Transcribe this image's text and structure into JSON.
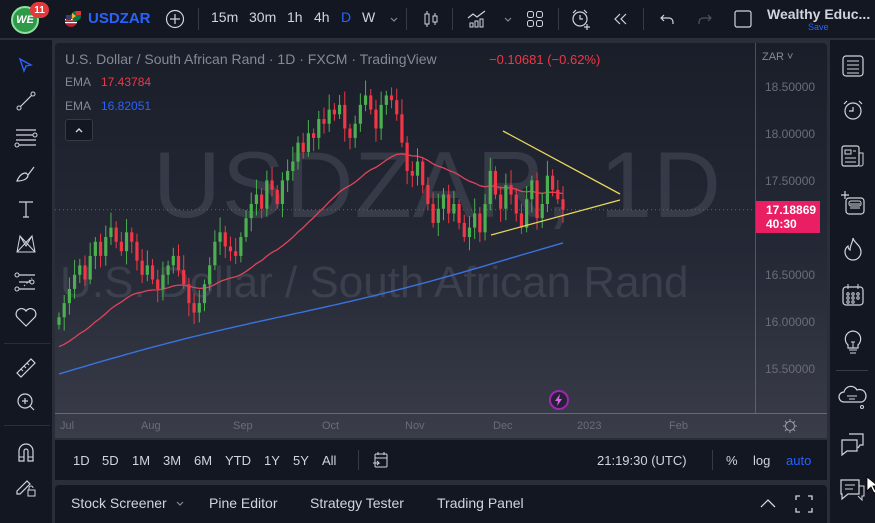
{
  "topbar": {
    "notifications": "11",
    "logo_text": "WE",
    "symbol": "USDZAR",
    "intervals": [
      "15m",
      "30m",
      "1h",
      "4h",
      "D",
      "W"
    ],
    "active_interval": "D",
    "account_name": "Wealthy Educ...",
    "save_label": "Save",
    "icons": [
      "add-symbol-icon",
      "interval-dropdown-icon",
      "candle-style-icon",
      "indicators-icon",
      "indicators-dropdown-icon",
      "layout-icon",
      "alert-icon",
      "replay-icon",
      "undo-icon",
      "redo-icon",
      "fullscreen-square-icon"
    ]
  },
  "legend": {
    "title": "U.S. Dollar / South African Rand · 1D · FXCM · TradingView",
    "change": "−0.10681 (−0.62%)",
    "ema": [
      {
        "label": "EMA",
        "value": "17.43784",
        "color": "#f23645"
      },
      {
        "label": "EMA",
        "value": "16.82051",
        "color": "#2962ff"
      }
    ]
  },
  "watermark": {
    "symbol": "USDZAR, 1D",
    "description": "U.S. Dollar / South African Rand"
  },
  "price_axis": {
    "currency": "ZAR",
    "labels": [
      "18.50000",
      "18.00000",
      "17.50000",
      "17.00000",
      "16.50000",
      "16.00000",
      "15.50000"
    ],
    "current_price": "17.18869",
    "countdown": "40:30",
    "current_color": "#e91e63"
  },
  "time_axis": {
    "labels": [
      "Jul",
      "Aug",
      "Sep",
      "Oct",
      "Nov",
      "Dec",
      "2023",
      "Feb"
    ]
  },
  "range_bar": {
    "ranges": [
      "1D",
      "5D",
      "1M",
      "3M",
      "6M",
      "YTD",
      "1Y",
      "5Y",
      "All"
    ],
    "clock": "21:19:30 (UTC)",
    "percent_label": "%",
    "log_label": "log",
    "auto_label": "auto"
  },
  "bottom_tabs": [
    "Stock Screener",
    "Pine Editor",
    "Strategy Tester",
    "Trading Panel"
  ],
  "colors": {
    "up": "#4caf50",
    "down": "#f23645",
    "ema_fast": "#e0445a",
    "ema_slow": "#3a72e0",
    "triangle": "#e8d85a",
    "accent": "#2962ff"
  },
  "chart_data": {
    "type": "candlestick",
    "title": "U.S. Dollar / South African Rand · 1D · FXCM",
    "ylim": [
      15.3,
      18.8
    ],
    "y_ticks": [
      18.5,
      18.0,
      17.5,
      17.0,
      16.5,
      16.0,
      15.5
    ],
    "x_ticks": [
      "Jul",
      "Aug",
      "Sep",
      "Oct",
      "Nov",
      "Dec",
      "2023",
      "Feb"
    ],
    "close_series": [
      16.05,
      16.2,
      16.35,
      16.5,
      16.6,
      16.45,
      16.7,
      16.85,
      16.7,
      16.9,
      17.0,
      16.85,
      16.75,
      16.95,
      16.85,
      16.65,
      16.5,
      16.6,
      16.45,
      16.35,
      16.5,
      16.6,
      16.7,
      16.55,
      16.4,
      16.2,
      16.1,
      16.2,
      16.4,
      16.6,
      16.85,
      16.95,
      16.8,
      16.75,
      16.7,
      16.9,
      17.1,
      17.25,
      17.35,
      17.2,
      17.5,
      17.4,
      17.25,
      17.5,
      17.6,
      17.7,
      17.9,
      17.8,
      18.0,
      17.95,
      18.15,
      18.1,
      18.25,
      18.2,
      18.3,
      18.05,
      17.95,
      18.1,
      18.3,
      18.4,
      18.25,
      18.05,
      18.3,
      18.4,
      18.35,
      18.2,
      17.9,
      17.6,
      17.55,
      17.7,
      17.45,
      17.25,
      17.05,
      17.2,
      17.35,
      17.15,
      17.25,
      17.05,
      16.9,
      17.0,
      17.15,
      16.95,
      17.25,
      17.6,
      17.35,
      17.2,
      17.45,
      17.35,
      17.15,
      17.0,
      17.3,
      17.5,
      17.1,
      17.25,
      17.55,
      17.4,
      17.3,
      17.19
    ],
    "series": [
      {
        "name": "EMA fast",
        "last": 17.43784
      },
      {
        "name": "EMA slow",
        "last": 16.82051
      }
    ],
    "annotations": [
      {
        "type": "trendline-upper",
        "from": [
          503,
          131
        ],
        "to": [
          620,
          194
        ]
      },
      {
        "type": "trendline-lower",
        "from": [
          491,
          235
        ],
        "to": [
          620,
          200
        ]
      },
      {
        "type": "horizontal-dotted",
        "price": 17.18869
      }
    ]
  }
}
